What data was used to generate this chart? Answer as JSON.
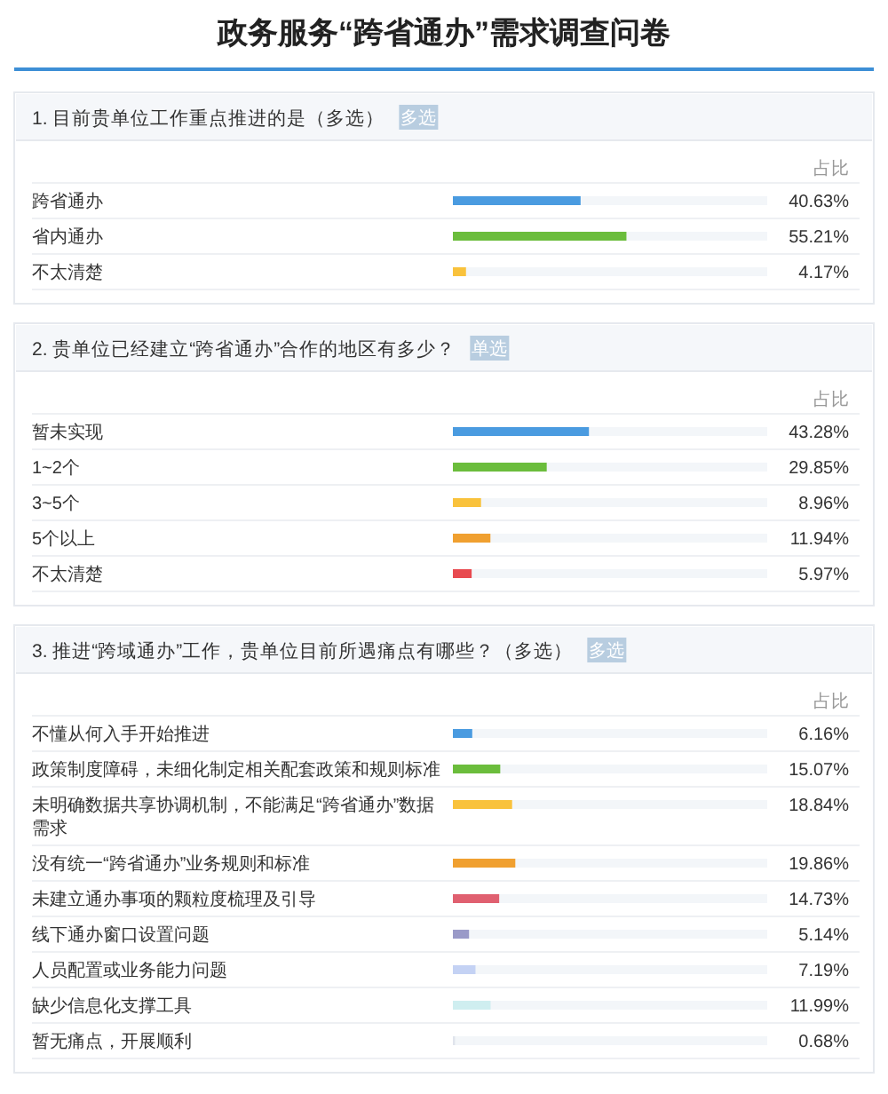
{
  "chart_data": [
    {
      "type": "other",
      "title": "政务服务“跨省通办”需求调查问卷"
    },
    {
      "type": "bar",
      "orientation": "horizontal",
      "title": "1. 目前贵单位工作重点推进的是（多选）",
      "subtitle": "多选",
      "annotations": [
        "占比"
      ],
      "xlim": [
        0,
        100
      ],
      "categories": [
        "跨省通办",
        "省内通办",
        "不太清楚"
      ],
      "values": [
        40.63,
        55.21,
        4.17
      ],
      "value_labels": [
        "40.63%",
        "55.21%",
        "4.17%"
      ],
      "colors": [
        "#4a9be0",
        "#6bbd3c",
        "#f9c23c"
      ]
    },
    {
      "type": "bar",
      "orientation": "horizontal",
      "title": "2. 贵单位已经建立“跨省通办”合作的地区有多少？",
      "subtitle": "单选",
      "annotations": [
        "占比"
      ],
      "xlim": [
        0,
        100
      ],
      "categories": [
        "暂未实现",
        "1~2个",
        "3~5个",
        "5个以上",
        "不太清楚"
      ],
      "values": [
        43.28,
        29.85,
        8.96,
        11.94,
        5.97
      ],
      "value_labels": [
        "43.28%",
        "29.85%",
        "8.96%",
        "11.94%",
        "5.97%"
      ],
      "colors": [
        "#4a9be0",
        "#6bbd3c",
        "#f9c23c",
        "#f0a030",
        "#e84a50"
      ]
    },
    {
      "type": "bar",
      "orientation": "horizontal",
      "title": "3. 推进“跨域通办”工作，贵单位目前所遇痛点有哪些？（多选）",
      "subtitle": "多选",
      "annotations": [
        "占比"
      ],
      "xlim": [
        0,
        100
      ],
      "categories": [
        "不懂从何入手开始推进",
        "政策制度障碍，未细化制定相关配套政策和规则标准",
        "未明确数据共享协调机制，不能满足“跨省通办”数据需求",
        "没有统一“跨省通办”业务规则和标准",
        "未建立通办事项的颗粒度梳理及引导",
        "线下通办窗口设置问题",
        "人员配置或业务能力问题",
        "缺少信息化支撑工具",
        "暂无痛点，开展顺利"
      ],
      "values": [
        6.16,
        15.07,
        18.84,
        19.86,
        14.73,
        5.14,
        7.19,
        11.99,
        0.68
      ],
      "value_labels": [
        "6.16%",
        "15.07%",
        "18.84%",
        "19.86%",
        "14.73%",
        "5.14%",
        "7.19%",
        "11.99%",
        "0.68%"
      ],
      "colors": [
        "#4a9be0",
        "#6bbd3c",
        "#f9c23c",
        "#f0a030",
        "#e06070",
        "#9a9ac8",
        "#c4d2f4",
        "#cfeef0",
        "#e0e4ec"
      ]
    }
  ]
}
